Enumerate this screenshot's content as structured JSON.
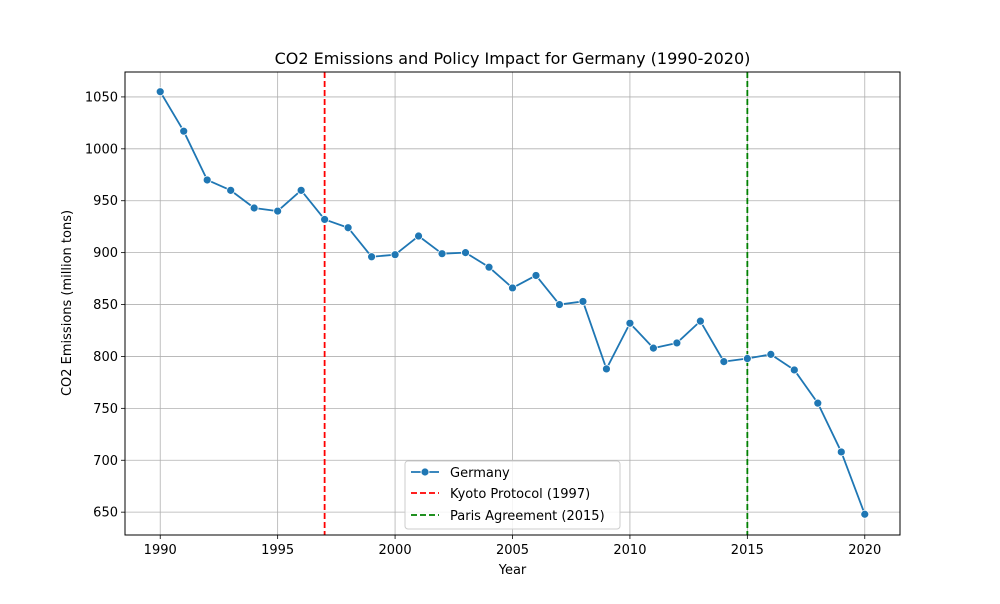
{
  "chart_data": {
    "type": "line",
    "title": "CO2 Emissions and Policy Impact for Germany (1990-2020)",
    "xlabel": "Year",
    "ylabel": "CO2 Emissions (million tons)",
    "xlim": [
      1988.5,
      2021.5
    ],
    "ylim": [
      628,
      1074
    ],
    "xticks": [
      1990,
      1995,
      2000,
      2005,
      2010,
      2015,
      2020
    ],
    "yticks": [
      650,
      700,
      750,
      800,
      850,
      900,
      950,
      1000,
      1050
    ],
    "grid": true,
    "legend_position": "bottom-center",
    "series": [
      {
        "name": "Germany",
        "color": "#1f77b4",
        "marker": "circle",
        "x": [
          1990,
          1991,
          1992,
          1993,
          1994,
          1995,
          1996,
          1997,
          1998,
          1999,
          2000,
          2001,
          2002,
          2003,
          2004,
          2005,
          2006,
          2007,
          2008,
          2009,
          2010,
          2011,
          2012,
          2013,
          2014,
          2015,
          2016,
          2017,
          2018,
          2019,
          2020
        ],
        "y": [
          1055,
          1017,
          970,
          960,
          943,
          940,
          960,
          932,
          924,
          896,
          898,
          916,
          899,
          900,
          886,
          866,
          878,
          850,
          853,
          788,
          832,
          808,
          813,
          834,
          795,
          798,
          802,
          787,
          755,
          708,
          648
        ]
      }
    ],
    "annotations": [
      {
        "name": "Kyoto Protocol (1997)",
        "x": 1997,
        "color": "#ff0000",
        "style": "dashed"
      },
      {
        "name": "Paris Agreement (2015)",
        "x": 2015,
        "color": "#008000",
        "style": "dashed"
      }
    ]
  }
}
